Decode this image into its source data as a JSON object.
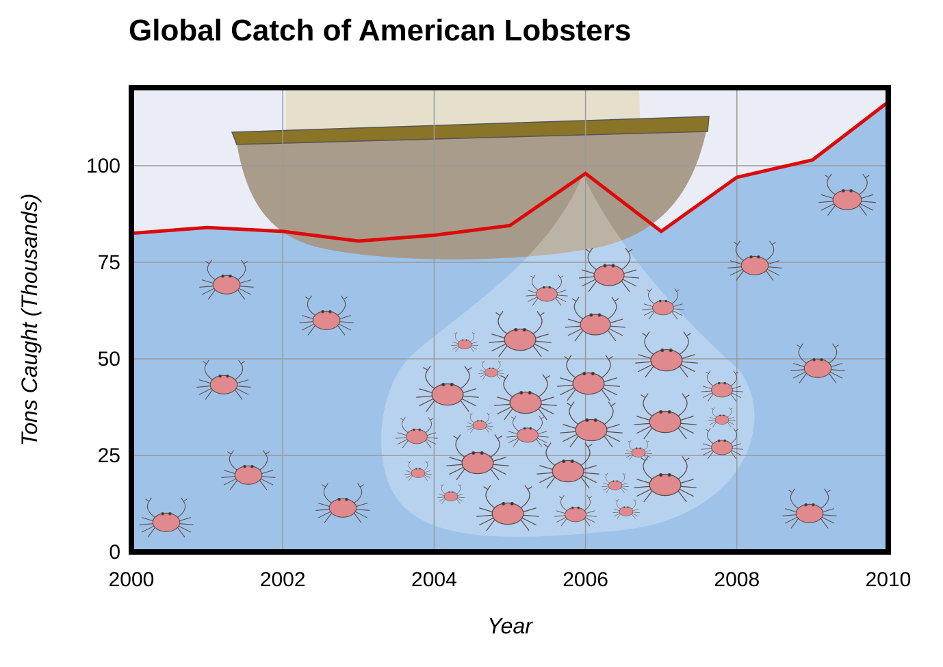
{
  "chart_data": {
    "type": "area",
    "title": "Global Catch of American Lobsters",
    "xlabel": "Year",
    "ylabel": "Tons Caught (Thousands)",
    "x": [
      2000,
      2001,
      2002,
      2003,
      2004,
      2005,
      2006,
      2007,
      2008,
      2009,
      2010
    ],
    "values": [
      82.5,
      84,
      83,
      80.5,
      82,
      84.5,
      98,
      83,
      97,
      101.5,
      116.5
    ],
    "xlim": [
      2000,
      2010
    ],
    "ylim": [
      0,
      120
    ],
    "xticks": [
      "2000",
      "2002",
      "2004",
      "2006",
      "2008",
      "2010"
    ],
    "yticks": [
      "0",
      "25",
      "50",
      "75",
      "100"
    ],
    "grid": true,
    "colors": {
      "line": "#dd0a0a",
      "water": "#9fc3e8",
      "sky": "#eaedf6",
      "boat_hull": "#a69885",
      "boat_deck": "#8a7428",
      "sail": "#e4e0cc",
      "crab": "#e08a8e"
    }
  }
}
